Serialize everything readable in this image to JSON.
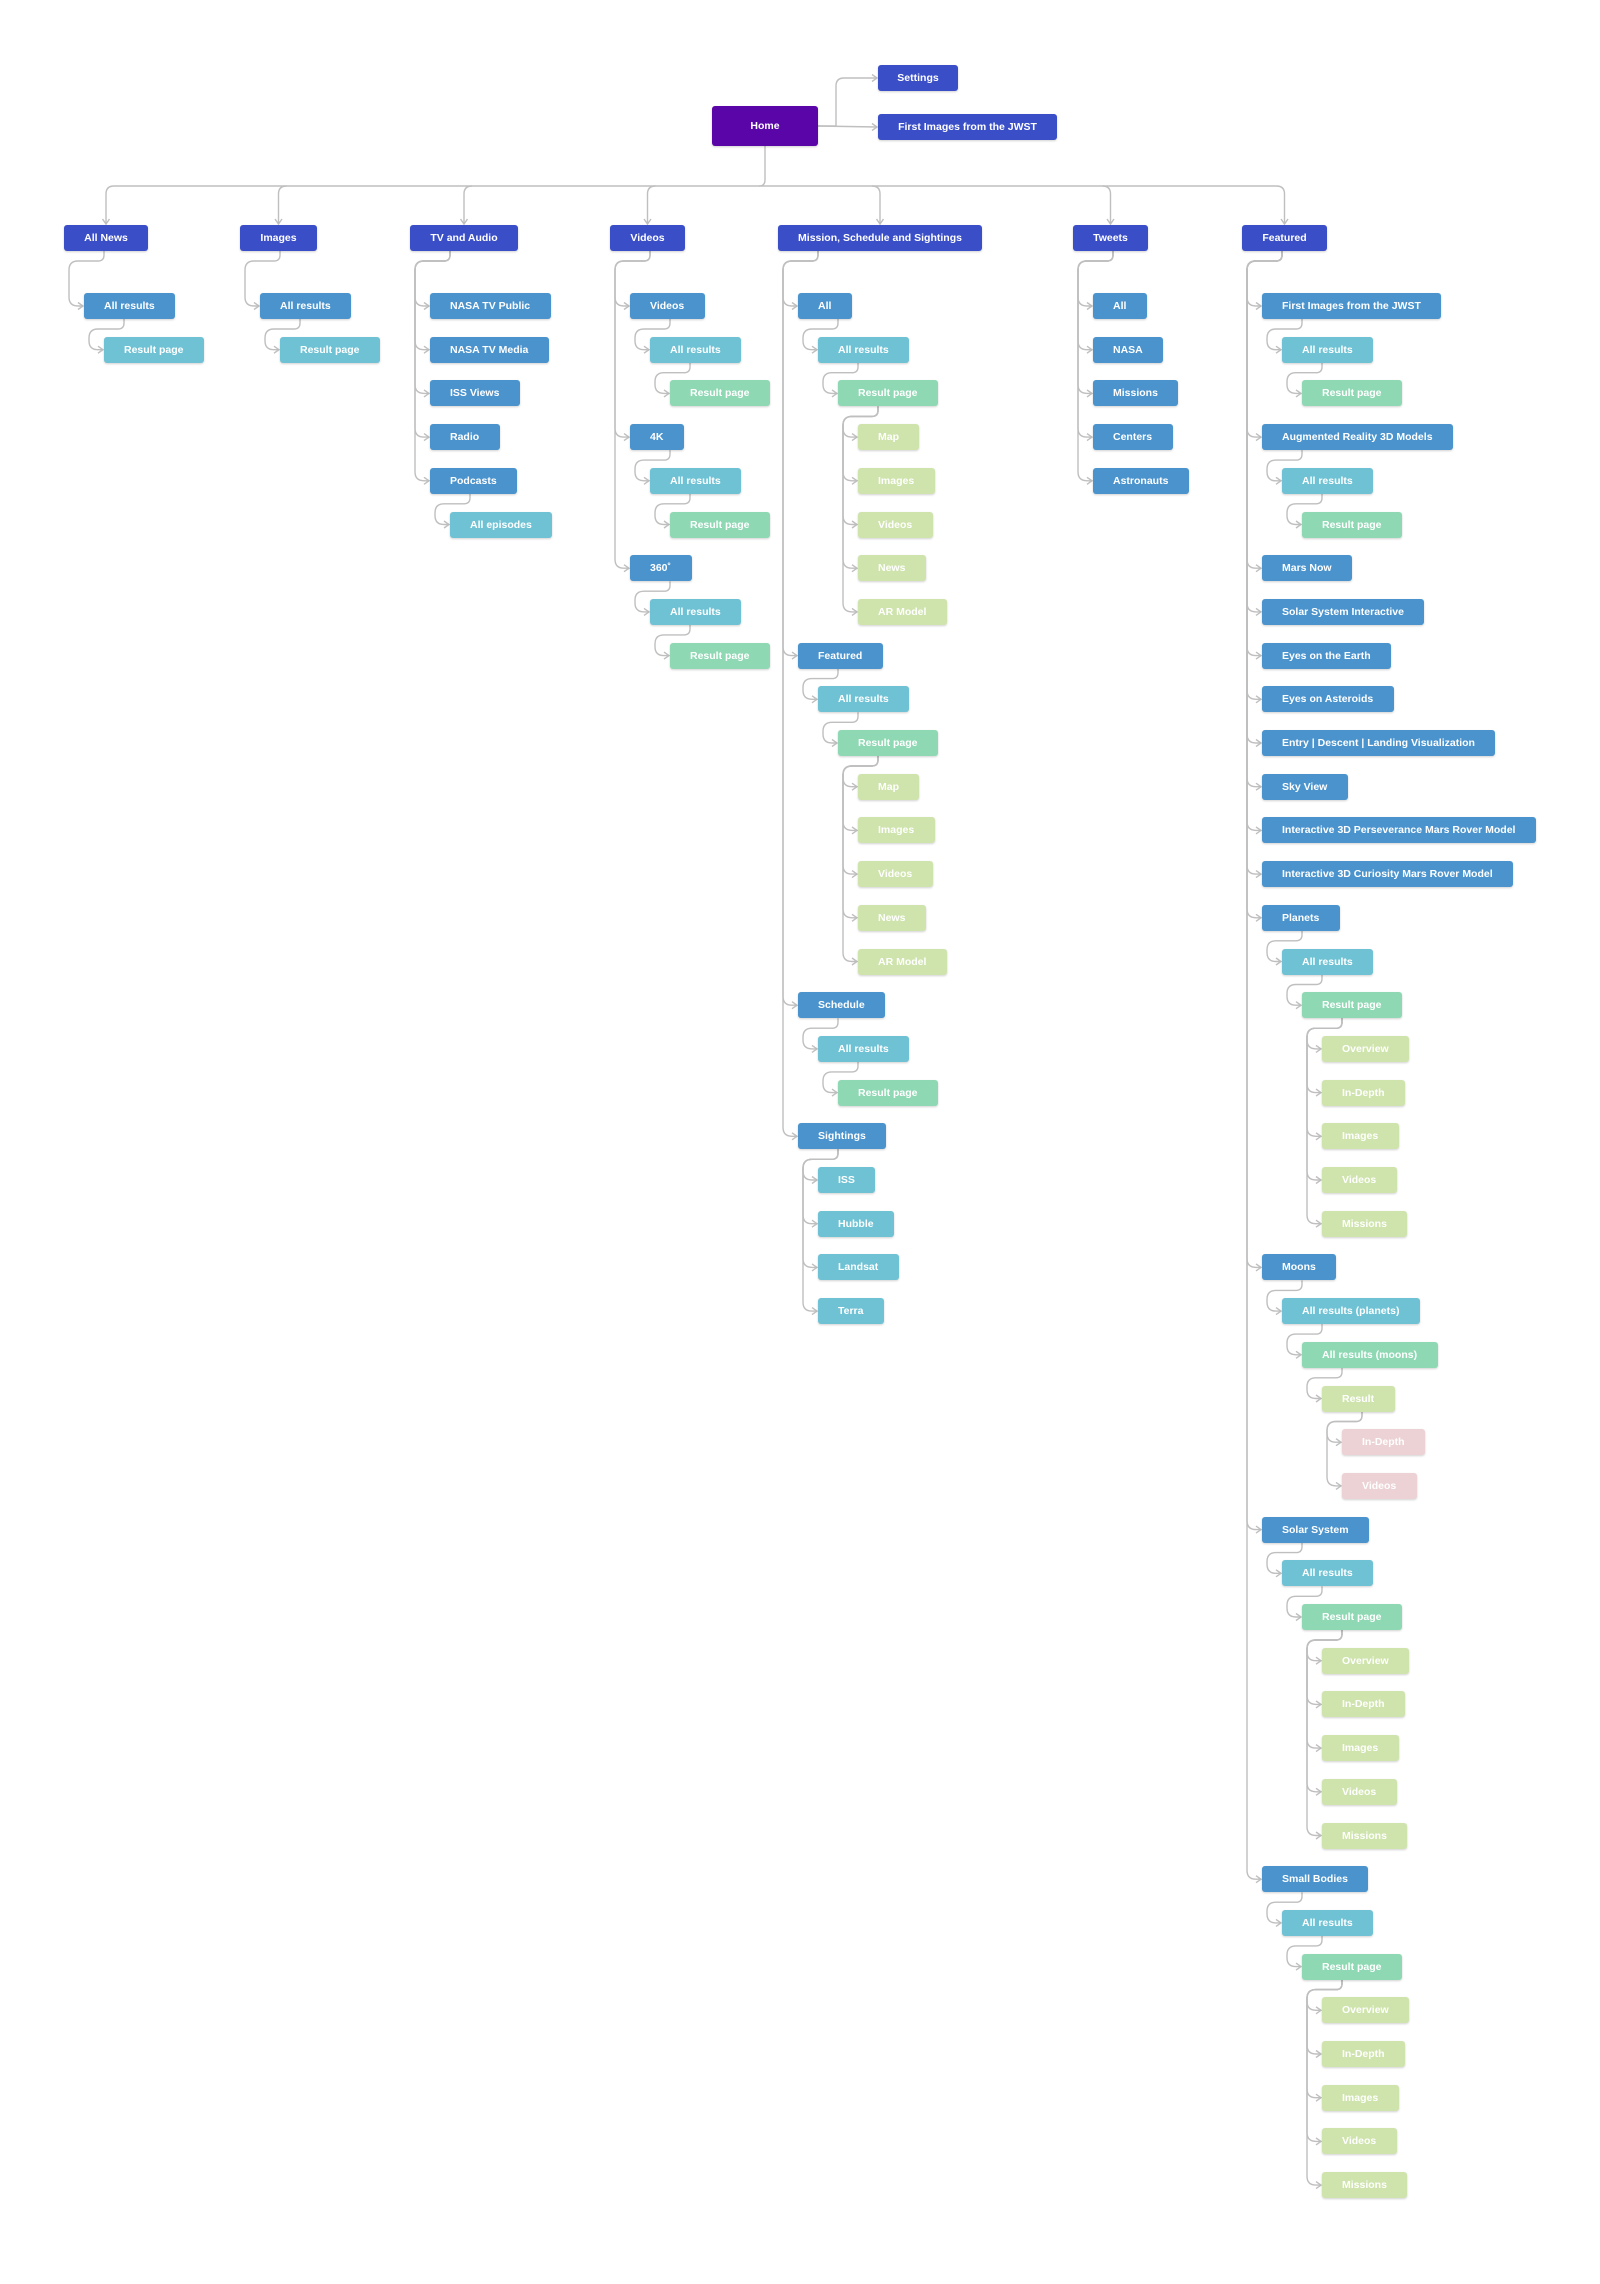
{
  "colors": {
    "root": "#5a05a8",
    "level1": "#3a4ec8",
    "level2": "#4a93cd",
    "level3": "#6ec2d4",
    "level4": "#8ed8b4",
    "level5": "#cfe4ac",
    "level6": "#ecd2d4",
    "connector": "#bfbfbf"
  },
  "root": {
    "label": "Home",
    "side": [
      {
        "label": "Settings"
      },
      {
        "label": "First Images from the JWST"
      }
    ],
    "sections": [
      {
        "label": "All News",
        "children": [
          {
            "label": "All results",
            "children": [
              {
                "label": "Result page"
              }
            ]
          }
        ]
      },
      {
        "label": "Images",
        "children": [
          {
            "label": "All results",
            "children": [
              {
                "label": "Result page"
              }
            ]
          }
        ]
      },
      {
        "label": "TV and Audio",
        "children": [
          {
            "label": "NASA TV Public"
          },
          {
            "label": "NASA TV Media"
          },
          {
            "label": "ISS Views"
          },
          {
            "label": "Radio"
          },
          {
            "label": "Podcasts",
            "children": [
              {
                "label": "All episodes"
              }
            ]
          }
        ]
      },
      {
        "label": "Videos",
        "children": [
          {
            "label": "Videos",
            "children": [
              {
                "label": "All results",
                "children": [
                  {
                    "label": "Result page"
                  }
                ]
              }
            ]
          },
          {
            "label": "4K",
            "children": [
              {
                "label": "All results",
                "children": [
                  {
                    "label": "Result page"
                  }
                ]
              }
            ]
          },
          {
            "label": "360˚",
            "children": [
              {
                "label": "All results",
                "children": [
                  {
                    "label": "Result page"
                  }
                ]
              }
            ]
          }
        ]
      },
      {
        "label": "Mission, Schedule and Sightings",
        "children": [
          {
            "label": "All",
            "children": [
              {
                "label": "All results",
                "children": [
                  {
                    "label": "Result page",
                    "children": [
                      {
                        "label": "Map"
                      },
                      {
                        "label": "Images"
                      },
                      {
                        "label": "Videos"
                      },
                      {
                        "label": "News"
                      },
                      {
                        "label": "AR Model"
                      }
                    ]
                  }
                ]
              }
            ]
          },
          {
            "label": "Featured",
            "children": [
              {
                "label": "All results",
                "children": [
                  {
                    "label": "Result page",
                    "children": [
                      {
                        "label": "Map"
                      },
                      {
                        "label": "Images"
                      },
                      {
                        "label": "Videos"
                      },
                      {
                        "label": "News"
                      },
                      {
                        "label": "AR Model"
                      }
                    ]
                  }
                ]
              }
            ]
          },
          {
            "label": "Schedule",
            "children": [
              {
                "label": "All results",
                "children": [
                  {
                    "label": "Result page"
                  }
                ]
              }
            ]
          },
          {
            "label": "Sightings",
            "children": [
              {
                "label": "ISS"
              },
              {
                "label": "Hubble"
              },
              {
                "label": "Landsat"
              },
              {
                "label": "Terra"
              }
            ]
          }
        ]
      },
      {
        "label": "Tweets",
        "children": [
          {
            "label": "All"
          },
          {
            "label": "NASA"
          },
          {
            "label": "Missions"
          },
          {
            "label": "Centers"
          },
          {
            "label": "Astronauts"
          }
        ]
      },
      {
        "label": "Featured",
        "children": [
          {
            "label": "First Images from the JWST",
            "children": [
              {
                "label": "All results",
                "children": [
                  {
                    "label": "Result page"
                  }
                ]
              }
            ]
          },
          {
            "label": "Augmented Reality 3D Models",
            "children": [
              {
                "label": "All results",
                "children": [
                  {
                    "label": "Result page"
                  }
                ]
              }
            ]
          },
          {
            "label": "Mars Now"
          },
          {
            "label": "Solar System Interactive"
          },
          {
            "label": "Eyes on the Earth"
          },
          {
            "label": "Eyes on Asteroids"
          },
          {
            "label": "Entry | Descent | Landing Visualization"
          },
          {
            "label": "Sky View"
          },
          {
            "label": "Interactive 3D Perseverance Mars Rover Model"
          },
          {
            "label": "Interactive 3D Curiosity Mars Rover Model"
          },
          {
            "label": "Planets",
            "children": [
              {
                "label": "All results",
                "children": [
                  {
                    "label": "Result page",
                    "children": [
                      {
                        "label": "Overview"
                      },
                      {
                        "label": "In-Depth"
                      },
                      {
                        "label": "Images"
                      },
                      {
                        "label": "Videos"
                      },
                      {
                        "label": "Missions"
                      }
                    ]
                  }
                ]
              }
            ]
          },
          {
            "label": "Moons",
            "children": [
              {
                "label": "All results (planets)",
                "children": [
                  {
                    "label": "All results (moons)",
                    "children": [
                      {
                        "label": "Result",
                        "children": [
                          {
                            "label": "In-Depth"
                          },
                          {
                            "label": "Videos"
                          }
                        ]
                      }
                    ]
                  }
                ]
              }
            ]
          },
          {
            "label": "Solar System",
            "children": [
              {
                "label": "All results",
                "children": [
                  {
                    "label": "Result page",
                    "children": [
                      {
                        "label": "Overview"
                      },
                      {
                        "label": "In-Depth"
                      },
                      {
                        "label": "Images"
                      },
                      {
                        "label": "Videos"
                      },
                      {
                        "label": "Missions"
                      }
                    ]
                  }
                ]
              }
            ]
          },
          {
            "label": "Small Bodies",
            "children": [
              {
                "label": "All results",
                "children": [
                  {
                    "label": "Result page",
                    "children": [
                      {
                        "label": "Overview"
                      },
                      {
                        "label": "In-Depth"
                      },
                      {
                        "label": "Images"
                      },
                      {
                        "label": "Videos"
                      },
                      {
                        "label": "Missions"
                      }
                    ]
                  }
                ]
              }
            ]
          }
        ]
      }
    ]
  }
}
